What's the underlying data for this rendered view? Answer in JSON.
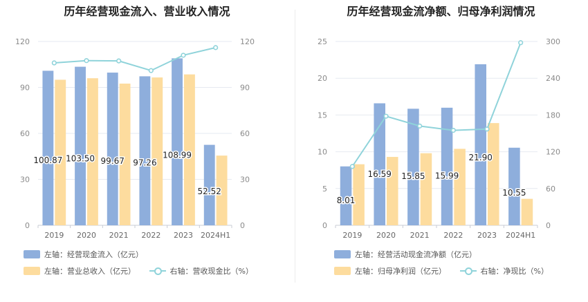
{
  "chart_data": [
    {
      "type": "bar",
      "title": "历年经营现金流入、营业收入情况",
      "categories": [
        "2019",
        "2020",
        "2021",
        "2022",
        "2023",
        "2024H1"
      ],
      "y_left_ticks": [
        "0",
        "30",
        "60",
        "90",
        "120"
      ],
      "y_right_ticks": [
        "0",
        "30",
        "60",
        "90",
        "120"
      ],
      "ylim_left": [
        0,
        120
      ],
      "ylim_right": [
        0,
        120
      ],
      "grid": true,
      "legend_position": "bottom-left",
      "series": [
        {
          "name": "左轴：经营现金流入（亿元）",
          "type": "bar",
          "axis": "left",
          "color": "#8eaedc",
          "values": [
            100.87,
            103.5,
            99.67,
            97.26,
            108.99,
            52.52
          ],
          "labels": [
            "100.87",
            "103.50",
            "99.67",
            "97.26",
            "108.99",
            "52.52"
          ]
        },
        {
          "name": "左轴：营业总收入（亿元）",
          "type": "bar",
          "axis": "left",
          "color": "#fddc9e",
          "values": [
            95,
            96,
            92.5,
            96.5,
            98.5,
            45.5
          ]
        },
        {
          "name": "右轴：营收现金比（%）",
          "type": "line",
          "axis": "right",
          "color": "#8fd3da",
          "values": [
            106,
            107.5,
            107.3,
            101,
            111,
            116
          ]
        }
      ]
    },
    {
      "type": "bar",
      "title": "历年经营现金流净额、归母净利润情况",
      "categories": [
        "2019",
        "2020",
        "2021",
        "2022",
        "2023",
        "2024H1"
      ],
      "y_left_ticks": [
        "0",
        "5",
        "10",
        "15",
        "20",
        "25"
      ],
      "y_right_ticks": [
        "0",
        "60",
        "120",
        "180",
        "240",
        "300"
      ],
      "ylim_left": [
        0,
        25
      ],
      "ylim_right": [
        0,
        300
      ],
      "grid": true,
      "legend_position": "bottom-left",
      "series": [
        {
          "name": "左轴：经营活动现金流净额（亿元）",
          "type": "bar",
          "axis": "left",
          "color": "#8eaedc",
          "values": [
            8.01,
            16.59,
            15.85,
            15.99,
            21.9,
            10.55
          ],
          "labels": [
            "8.01",
            "16.59",
            "15.85",
            "15.99",
            "21.90",
            "10.55"
          ]
        },
        {
          "name": "左轴：归母净利润（亿元）",
          "type": "bar",
          "axis": "left",
          "color": "#fddc9e",
          "values": [
            8.3,
            9.3,
            9.8,
            10.4,
            13.9,
            3.6
          ]
        },
        {
          "name": "右轴：净现比（%）",
          "type": "line",
          "axis": "right",
          "color": "#8fd3da",
          "values": [
            96,
            178,
            162,
            155,
            157,
            298
          ]
        }
      ]
    }
  ]
}
